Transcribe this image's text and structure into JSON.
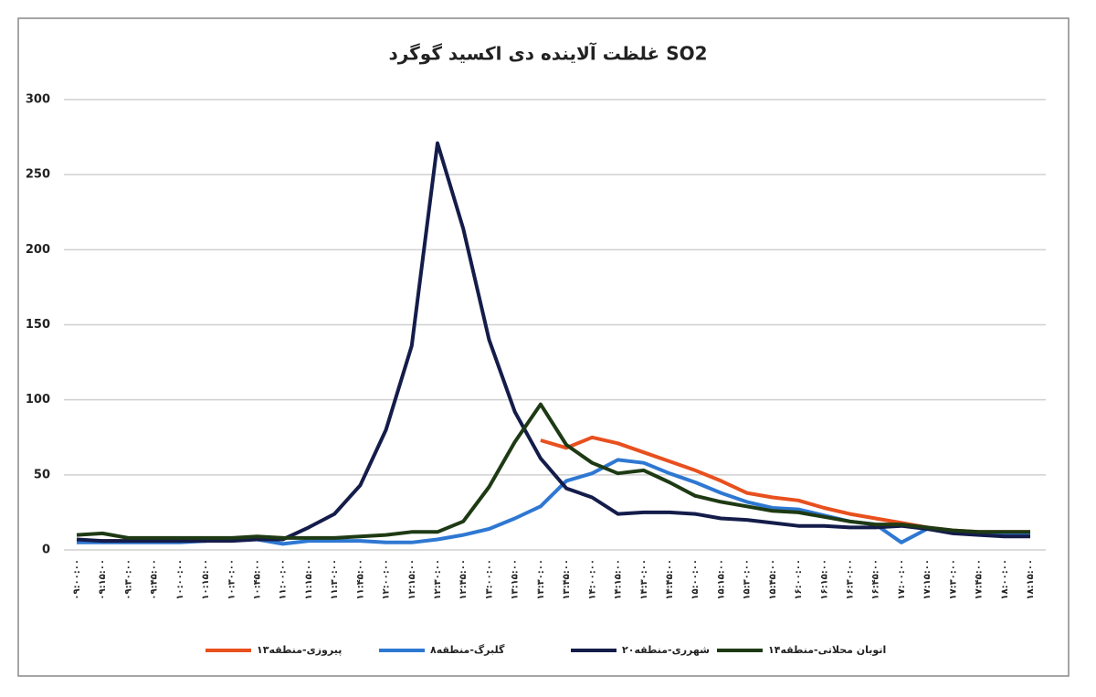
{
  "chart_data": {
    "type": "line",
    "title": "غلظت آلاینده دی اکسید گوگرد SO2",
    "categories": [
      "۰۹:۰۰:۰۰",
      "۰۹:۱۵:۰۰",
      "۰۹:۳۰:۰۰",
      "۰۹:۴۵:۰۰",
      "۱۰:۰۰:۰۰",
      "۱۰:۱۵:۰۰",
      "۱۰:۳۰:۰۰",
      "۱۰:۴۵:۰۰",
      "۱۱:۰۰:۰۰",
      "۱۱:۱۵:۰۰",
      "۱۱:۳۰:۰۰",
      "۱۱:۴۵:۰۰",
      "۱۲:۰۰:۰۰",
      "۱۲:۱۵:۰۰",
      "۱۲:۳۰:۰۰",
      "۱۲:۴۵:۰۰",
      "۱۳:۰۰:۰۰",
      "۱۳:۱۵:۰۰",
      "۱۳:۳۰:۰۰",
      "۱۳:۴۵:۰۰",
      "۱۴:۰۰:۰۰",
      "۱۴:۱۵:۰۰",
      "۱۴:۳۰:۰۰",
      "۱۴:۴۵:۰۰",
      "۱۵:۰۰:۰۰",
      "۱۵:۱۵:۰۰",
      "۱۵:۳۰:۰۰",
      "۱۵:۴۵:۰۰",
      "۱۶:۰۰:۰۰",
      "۱۶:۱۵:۰۰",
      "۱۶:۳۰:۰۰",
      "۱۶:۴۵:۰۰",
      "۱۷:۰۰:۰۰",
      "۱۷:۱۵:۰۰",
      "۱۷:۳۰:۰۰",
      "۱۷:۴۵:۰۰",
      "۱۸:۰۰:۰۰",
      "۱۸:۱۵:۰۰"
    ],
    "series": [
      {
        "name": "پیروزی-منطقه۱۳",
        "color": "#e8501e",
        "values": [
          6,
          6,
          6,
          6,
          6,
          6,
          7,
          8,
          8,
          null,
          null,
          null,
          null,
          null,
          null,
          null,
          null,
          null,
          73,
          68,
          75,
          71,
          65,
          59,
          53,
          46,
          38,
          35,
          33,
          28,
          24,
          21,
          18,
          15,
          13,
          12,
          12,
          12
        ]
      },
      {
        "name": "گلبرگ-منطقه۸",
        "color": "#2e78d2",
        "values": [
          5,
          5,
          5,
          5,
          5,
          6,
          7,
          7,
          4,
          6,
          6,
          6,
          5,
          5,
          7,
          10,
          14,
          21,
          29,
          46,
          51,
          60,
          58,
          51,
          45,
          38,
          32,
          28,
          27,
          23,
          19,
          17,
          5,
          14,
          12,
          11,
          10,
          10
        ]
      },
      {
        "name": "شهرری-منطقه۲۰",
        "color": "#141c4a",
        "values": [
          7,
          6,
          6,
          6,
          6,
          6,
          6,
          7,
          7,
          15,
          24,
          43,
          80,
          136,
          271,
          214,
          140,
          92,
          61,
          41,
          35,
          24,
          25,
          25,
          24,
          21,
          20,
          18,
          16,
          16,
          15,
          15,
          16,
          14,
          11,
          10,
          9,
          9
        ]
      },
      {
        "name": "اتوبان محلاتی-منطقه۱۴",
        "color": "#1e3a14",
        "values": [
          10,
          11,
          8,
          8,
          8,
          8,
          8,
          9,
          8,
          8,
          8,
          9,
          10,
          12,
          12,
          19,
          42,
          72,
          97,
          70,
          58,
          51,
          53,
          45,
          36,
          32,
          29,
          26,
          25,
          22,
          19,
          17,
          17,
          15,
          13,
          12,
          12,
          12
        ]
      }
    ],
    "ylim": [
      0,
      300
    ],
    "yticks": [
      0,
      50,
      100,
      150,
      200,
      250,
      300
    ],
    "grid": true,
    "legend": "bottom"
  }
}
